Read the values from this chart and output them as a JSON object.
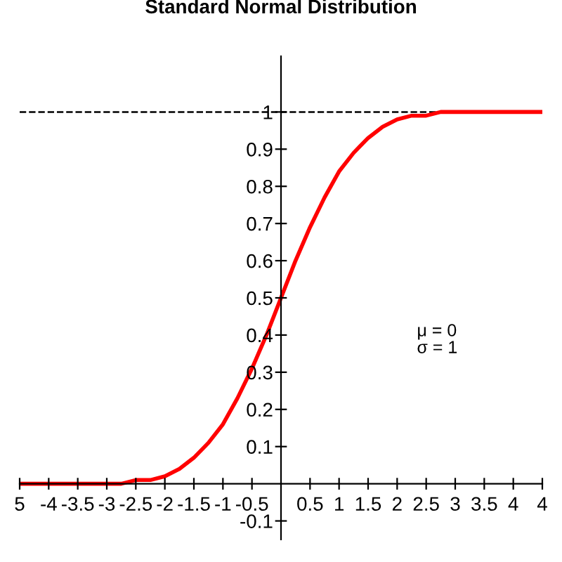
{
  "chart_data": {
    "type": "line",
    "title": "Standard Normal Distribution",
    "x": [
      -4.5,
      -4.25,
      -4,
      -3.75,
      -3.5,
      -3.25,
      -3,
      -2.75,
      -2.5,
      -2.25,
      -2,
      -1.75,
      -1.5,
      -1.25,
      -1,
      -0.75,
      -0.5,
      -0.25,
      0,
      0.25,
      0.5,
      0.75,
      1,
      1.25,
      1.5,
      1.75,
      2,
      2.25,
      2.5,
      2.75,
      3,
      3.25,
      3.5,
      3.75,
      4,
      4.25,
      4.5
    ],
    "series": [
      {
        "color": "#ff0000",
        "values": [
          0,
          0,
          0,
          0,
          0,
          0,
          0,
          0,
          0.01,
          0.01,
          0.02,
          0.04,
          0.07,
          0.11,
          0.16,
          0.23,
          0.31,
          0.4,
          0.5,
          0.6,
          0.69,
          0.77,
          0.84,
          0.89,
          0.93,
          0.96,
          0.98,
          0.99,
          0.99,
          1,
          1,
          1,
          1,
          1,
          1,
          1,
          1
        ]
      }
    ],
    "xlim": [
      -4.5,
      4.5
    ],
    "ylim": [
      -0.15,
      1.15
    ],
    "xticks": [
      {
        "value": -4.5,
        "label": "5"
      },
      -4,
      -3.5,
      -3,
      -2.5,
      -2,
      -1.5,
      -1,
      -0.5,
      0.5,
      1,
      1.5,
      2,
      2.5,
      3,
      3.5,
      4,
      {
        "value": 4.5,
        "label": "4"
      }
    ],
    "yticks": [
      -0.1,
      0.1,
      0.2,
      0.3,
      0.4,
      0.5,
      0.6,
      0.7,
      0.8,
      0.9,
      1
    ],
    "ref_lines": [
      {
        "axis": "y",
        "value": 1,
        "color": "#000000",
        "line_style": "dashed"
      }
    ],
    "annotations": [
      "μ = 0",
      "σ = 1"
    ],
    "grid": false,
    "legend": false,
    "marker": "none",
    "line_style": "solid"
  }
}
